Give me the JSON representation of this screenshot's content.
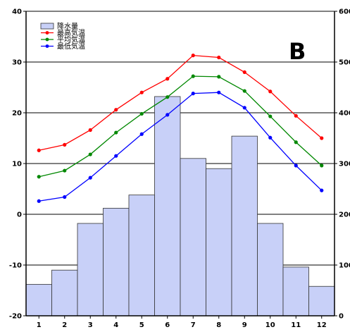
{
  "chart_data": {
    "type": "bar",
    "annotation": "B",
    "categories": [
      "1",
      "2",
      "3",
      "4",
      "5",
      "6",
      "7",
      "8",
      "9",
      "10",
      "11",
      "12"
    ],
    "left_axis": {
      "ylim": [
        -20,
        40
      ],
      "ticks": [
        "-20",
        "-10",
        "0",
        "10",
        "20",
        "30",
        "40"
      ]
    },
    "right_axis": {
      "ylim": [
        0,
        600
      ],
      "ticks": [
        "0",
        "100",
        "200",
        "300",
        "400",
        "500",
        "600"
      ]
    },
    "grid": true,
    "legend_position": "top-left",
    "series": [
      {
        "name": "降水量",
        "kind": "bar",
        "axis": "right",
        "color": "#c8d0f8",
        "values": [
          62,
          90,
          182,
          212,
          238,
          432,
          310,
          290,
          354,
          182,
          96,
          58
        ]
      },
      {
        "name": "最高気温",
        "kind": "line",
        "axis": "left",
        "color": "#ff0000",
        "values": [
          12.6,
          13.7,
          16.6,
          20.6,
          24.0,
          26.7,
          31.3,
          30.9,
          28.0,
          24.2,
          19.4,
          15.0
        ]
      },
      {
        "name": "平均気温",
        "kind": "line",
        "axis": "left",
        "color": "#008800",
        "values": [
          7.4,
          8.6,
          11.8,
          16.1,
          19.8,
          23.1,
          27.2,
          27.1,
          24.3,
          19.3,
          14.2,
          9.6
        ]
      },
      {
        "name": "最低気温",
        "kind": "line",
        "axis": "left",
        "color": "#0000ff",
        "values": [
          2.6,
          3.4,
          7.2,
          11.5,
          15.8,
          19.6,
          23.8,
          24.0,
          21.0,
          15.1,
          9.6,
          4.7
        ]
      }
    ]
  }
}
